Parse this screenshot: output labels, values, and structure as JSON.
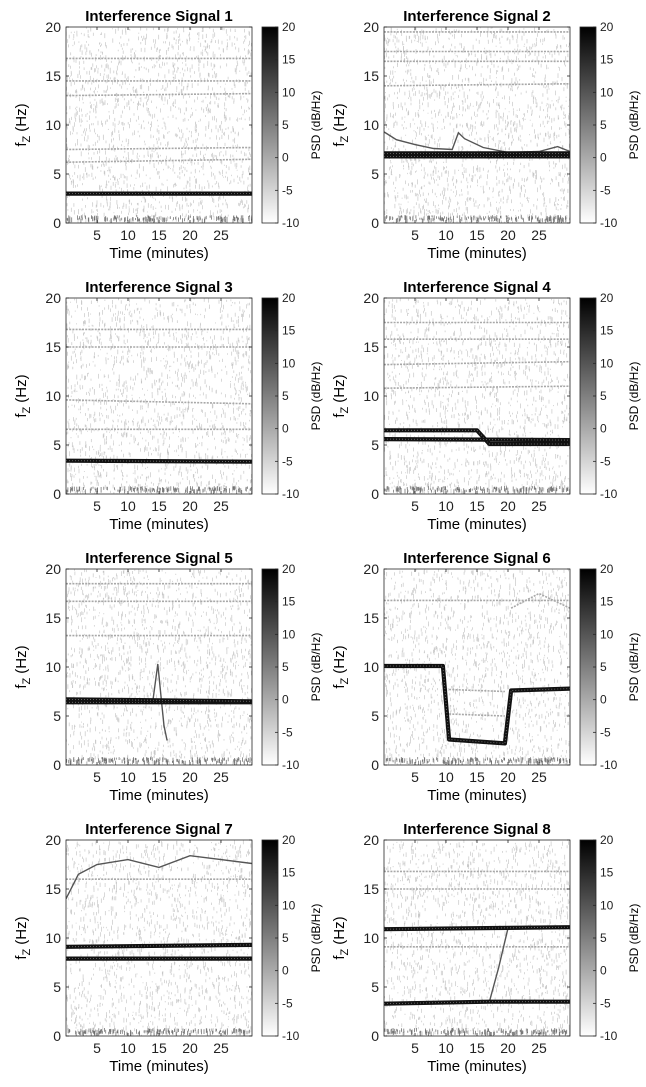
{
  "chart_data": [
    {
      "type": "heatmap",
      "title": "Interference Signal 1",
      "xlabel": "Time (minutes)",
      "ylabel_main": "f",
      "ylabel_sub": "Z",
      "ylabel_unit": "(Hz)",
      "xlim": [
        0,
        30
      ],
      "ylim": [
        0,
        20
      ],
      "xticks": [
        5,
        10,
        15,
        20,
        25
      ],
      "yticks": [
        0,
        5,
        10,
        15,
        20
      ],
      "colorbar": {
        "label": "PSD (dB/Hz)",
        "range": [
          -10,
          20
        ],
        "ticks": [
          20,
          15,
          10,
          5,
          0,
          -5,
          -10
        ],
        "colormap": "gray-inverted"
      },
      "strong_lines": [
        {
          "t": [
            0,
            30
          ],
          "f": [
            3.0,
            3.0
          ]
        }
      ],
      "faint_lines": [
        {
          "t": [
            0,
            30
          ],
          "f": [
            6.2,
            6.5
          ]
        },
        {
          "t": [
            0,
            30
          ],
          "f": [
            7.5,
            7.7
          ]
        },
        {
          "t": [
            0,
            30
          ],
          "f": [
            13.0,
            13.2
          ]
        },
        {
          "t": [
            0,
            30
          ],
          "f": [
            14.5,
            14.5
          ]
        },
        {
          "t": [
            0,
            30
          ],
          "f": [
            16.8,
            16.8
          ]
        }
      ]
    },
    {
      "type": "heatmap",
      "title": "Interference Signal 2",
      "xlabel": "Time (minutes)",
      "ylabel_main": "f",
      "ylabel_sub": "Z",
      "ylabel_unit": "(Hz)",
      "xlim": [
        0,
        30
      ],
      "ylim": [
        0,
        20
      ],
      "xticks": [
        5,
        10,
        15,
        20,
        25
      ],
      "yticks": [
        0,
        5,
        10,
        15,
        20
      ],
      "colorbar": {
        "label": "PSD (dB/Hz)",
        "range": [
          -10,
          20
        ],
        "ticks": [
          20,
          15,
          10,
          5,
          0,
          -5,
          -10
        ],
        "colormap": "gray-inverted"
      },
      "strong_lines": [
        {
          "t": [
            0,
            30
          ],
          "f": [
            6.8,
            6.8
          ]
        },
        {
          "t": [
            0,
            30
          ],
          "f": [
            7.1,
            7.1
          ]
        }
      ],
      "medium_lines": [
        {
          "t": [
            0,
            2,
            5,
            8,
            11,
            12,
            13,
            16,
            20,
            25,
            28,
            30
          ],
          "f": [
            9.3,
            8.5,
            8.0,
            7.6,
            7.5,
            9.2,
            8.6,
            7.7,
            7.2,
            7.3,
            7.8,
            7.3
          ]
        }
      ],
      "faint_lines": [
        {
          "t": [
            0,
            30
          ],
          "f": [
            14.0,
            14.2
          ]
        },
        {
          "t": [
            0,
            30
          ],
          "f": [
            16.5,
            16.5
          ]
        },
        {
          "t": [
            0,
            30
          ],
          "f": [
            17.5,
            17.5
          ]
        },
        {
          "t": [
            0,
            30
          ],
          "f": [
            19.5,
            19.5
          ]
        }
      ]
    },
    {
      "type": "heatmap",
      "title": "Interference Signal 3",
      "xlabel": "Time (minutes)",
      "ylabel_main": "f",
      "ylabel_sub": "Z",
      "ylabel_unit": "(Hz)",
      "xlim": [
        0,
        30
      ],
      "ylim": [
        0,
        20
      ],
      "xticks": [
        5,
        10,
        15,
        20,
        25
      ],
      "yticks": [
        0,
        5,
        10,
        15,
        20
      ],
      "colorbar": {
        "label": "PSD (dB/Hz)",
        "range": [
          -10,
          20
        ],
        "ticks": [
          20,
          15,
          10,
          5,
          0,
          -5,
          -10
        ],
        "colormap": "gray-inverted"
      },
      "strong_lines": [
        {
          "t": [
            0,
            30
          ],
          "f": [
            3.4,
            3.3
          ]
        }
      ],
      "faint_lines": [
        {
          "t": [
            0,
            30
          ],
          "f": [
            6.6,
            6.6
          ]
        },
        {
          "t": [
            0,
            30
          ],
          "f": [
            9.6,
            9.2
          ]
        },
        {
          "t": [
            0,
            30
          ],
          "f": [
            15.0,
            15.0
          ]
        },
        {
          "t": [
            0,
            30
          ],
          "f": [
            16.8,
            16.8
          ]
        }
      ]
    },
    {
      "type": "heatmap",
      "title": "Interference Signal 4",
      "xlabel": "Time (minutes)",
      "ylabel_main": "f",
      "ylabel_sub": "Z",
      "ylabel_unit": "(Hz)",
      "xlim": [
        0,
        30
      ],
      "ylim": [
        0,
        20
      ],
      "xticks": [
        5,
        10,
        15,
        20,
        25
      ],
      "yticks": [
        0,
        5,
        10,
        15,
        20
      ],
      "colorbar": {
        "label": "PSD (dB/Hz)",
        "range": [
          -10,
          20
        ],
        "ticks": [
          20,
          15,
          10,
          5,
          0,
          -5,
          -10
        ],
        "colormap": "gray-inverted"
      },
      "strong_lines": [
        {
          "t": [
            0,
            15,
            17,
            30
          ],
          "f": [
            6.5,
            6.5,
            5.1,
            5.1
          ]
        },
        {
          "t": [
            0,
            30
          ],
          "f": [
            5.6,
            5.5
          ]
        }
      ],
      "faint_lines": [
        {
          "t": [
            0,
            30
          ],
          "f": [
            10.8,
            11.0
          ]
        },
        {
          "t": [
            0,
            30
          ],
          "f": [
            13.2,
            13.5
          ]
        },
        {
          "t": [
            0,
            30
          ],
          "f": [
            15.8,
            15.8
          ]
        },
        {
          "t": [
            0,
            30
          ],
          "f": [
            17.5,
            17.5
          ]
        }
      ]
    },
    {
      "type": "heatmap",
      "title": "Interference Signal 5",
      "xlabel": "Time (minutes)",
      "ylabel_main": "f",
      "ylabel_sub": "Z",
      "ylabel_unit": "(Hz)",
      "xlim": [
        0,
        30
      ],
      "ylim": [
        0,
        20
      ],
      "xticks": [
        5,
        10,
        15,
        20,
        25
      ],
      "yticks": [
        0,
        5,
        10,
        15,
        20
      ],
      "colorbar": {
        "label": "PSD (dB/Hz)",
        "range": [
          -10,
          20
        ],
        "ticks": [
          20,
          15,
          10,
          5,
          0,
          -5,
          -10
        ],
        "colormap": "gray-inverted"
      },
      "strong_lines": [
        {
          "t": [
            0,
            30
          ],
          "f": [
            6.4,
            6.4
          ]
        },
        {
          "t": [
            0,
            30
          ],
          "f": [
            6.7,
            6.5
          ]
        }
      ],
      "medium_lines": [
        {
          "t": [
            14,
            14.8,
            15.4,
            15.8,
            16.3
          ],
          "f": [
            6.5,
            10.3,
            6.5,
            4.0,
            2.5
          ]
        }
      ],
      "faint_lines": [
        {
          "t": [
            0,
            30
          ],
          "f": [
            13.2,
            13.2
          ]
        },
        {
          "t": [
            0,
            30
          ],
          "f": [
            16.7,
            16.7
          ]
        },
        {
          "t": [
            0,
            30
          ],
          "f": [
            18.5,
            18.5
          ]
        }
      ]
    },
    {
      "type": "heatmap",
      "title": "Interference Signal 6",
      "xlabel": "Time (minutes)",
      "ylabel_main": "f",
      "ylabel_sub": "Z",
      "ylabel_unit": "(Hz)",
      "xlim": [
        0,
        30
      ],
      "ylim": [
        0,
        20
      ],
      "xticks": [
        5,
        10,
        15,
        20,
        25
      ],
      "yticks": [
        0,
        5,
        10,
        15,
        20
      ],
      "colorbar": {
        "label": "PSD (dB/Hz)",
        "range": [
          -10,
          20
        ],
        "ticks": [
          20,
          15,
          10,
          5,
          0,
          -5,
          -10
        ],
        "colormap": "gray-inverted"
      },
      "strong_lines": [
        {
          "t": [
            0,
            9.5,
            10.5,
            19.5,
            20.5,
            30
          ],
          "f": [
            10.1,
            10.1,
            2.6,
            2.2,
            7.6,
            7.8
          ]
        }
      ],
      "faint_lines": [
        {
          "t": [
            10.5,
            19.5
          ],
          "f": [
            5.2,
            5.0
          ]
        },
        {
          "t": [
            10.5,
            19.5
          ],
          "f": [
            7.7,
            7.5
          ]
        },
        {
          "t": [
            20.5,
            25,
            30
          ],
          "f": [
            16.0,
            17.5,
            16.0
          ]
        },
        {
          "t": [
            0,
            30
          ],
          "f": [
            16.8,
            16.8
          ]
        }
      ]
    },
    {
      "type": "heatmap",
      "title": "Interference Signal 7",
      "xlabel": "Time (minutes)",
      "ylabel_main": "f",
      "ylabel_sub": "Z",
      "ylabel_unit": "(Hz)",
      "xlim": [
        0,
        30
      ],
      "ylim": [
        0,
        20
      ],
      "xticks": [
        5,
        10,
        15,
        20,
        25
      ],
      "yticks": [
        0,
        5,
        10,
        15,
        20
      ],
      "colorbar": {
        "label": "PSD (dB/Hz)",
        "range": [
          -10,
          20
        ],
        "ticks": [
          20,
          15,
          10,
          5,
          0,
          -5,
          -10
        ],
        "colormap": "gray-inverted"
      },
      "strong_lines": [
        {
          "t": [
            0,
            30
          ],
          "f": [
            9.1,
            9.3
          ]
        },
        {
          "t": [
            0,
            30
          ],
          "f": [
            7.9,
            7.9
          ]
        }
      ],
      "medium_lines": [
        {
          "t": [
            0,
            2,
            5,
            10,
            15,
            20,
            25,
            30
          ],
          "f": [
            14.0,
            16.5,
            17.5,
            18.0,
            17.2,
            18.4,
            18.0,
            17.6
          ]
        }
      ],
      "faint_lines": [
        {
          "t": [
            0,
            30
          ],
          "f": [
            16.0,
            16.0
          ]
        }
      ]
    },
    {
      "type": "heatmap",
      "title": "Interference Signal 8",
      "xlabel": "Time (minutes)",
      "ylabel_main": "f",
      "ylabel_sub": "Z",
      "ylabel_unit": "(Hz)",
      "xlim": [
        0,
        30
      ],
      "ylim": [
        0,
        20
      ],
      "xticks": [
        5,
        10,
        15,
        20,
        25
      ],
      "yticks": [
        0,
        5,
        10,
        15,
        20
      ],
      "colorbar": {
        "label": "PSD (dB/Hz)",
        "range": [
          -10,
          20
        ],
        "ticks": [
          20,
          15,
          10,
          5,
          0,
          -5,
          -10
        ],
        "colormap": "gray-inverted"
      },
      "strong_lines": [
        {
          "t": [
            0,
            30
          ],
          "f": [
            10.9,
            11.1
          ]
        },
        {
          "t": [
            0,
            17,
            30
          ],
          "f": [
            3.3,
            3.5,
            3.5
          ]
        }
      ],
      "medium_lines": [
        {
          "t": [
            17,
            18.5,
            20
          ],
          "f": [
            3.5,
            7.0,
            11.0
          ]
        }
      ],
      "faint_lines": [
        {
          "t": [
            0,
            30
          ],
          "f": [
            9.1,
            9.1
          ]
        },
        {
          "t": [
            0,
            30
          ],
          "f": [
            15.0,
            15.0
          ]
        },
        {
          "t": [
            0,
            30
          ],
          "f": [
            16.8,
            16.8
          ]
        }
      ]
    }
  ]
}
